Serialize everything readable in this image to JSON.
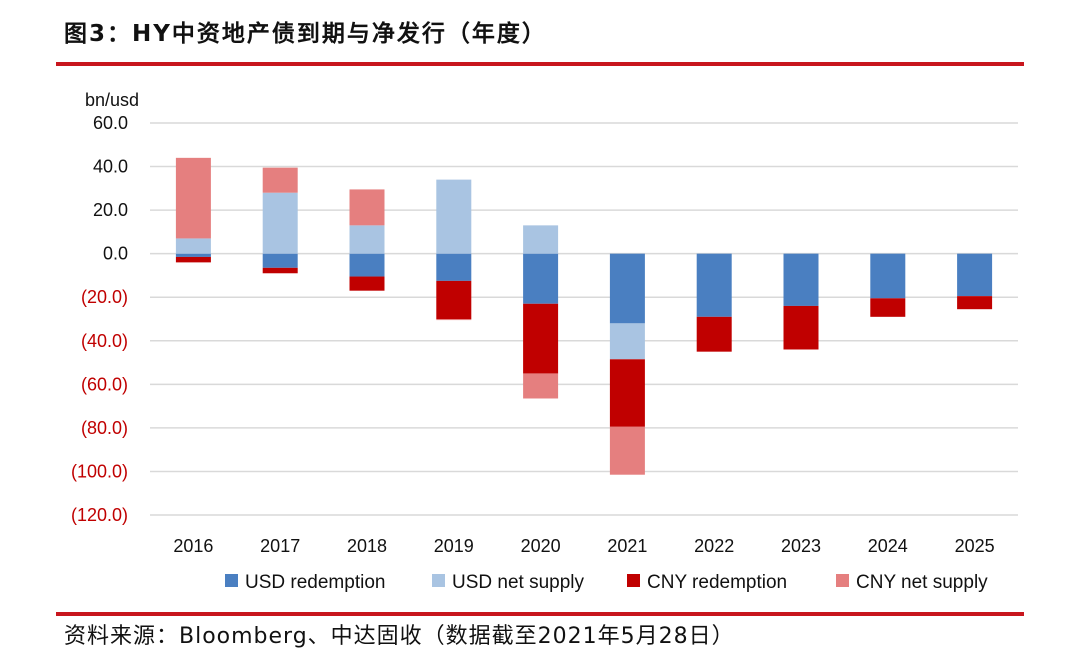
{
  "header": {
    "title": "图3：HY中资地产债到期与净发行（年度）"
  },
  "footer": {
    "source": "资料来源：Bloomberg、中达固收（数据截至2021年5月28日）"
  },
  "colors": {
    "rule": "#c8161d",
    "grid": "#d9d9d9",
    "negative_label": "#c00000",
    "positive_label": "#111111"
  },
  "chart_data": {
    "type": "bar",
    "stacked": true,
    "title": "图3：HY中资地产债到期与净发行（年度）",
    "ylabel": "bn/usd",
    "xlabel": "",
    "ylim": [
      -120,
      60
    ],
    "yticks": [
      60,
      40,
      20,
      0,
      -20,
      -40,
      -60,
      -80,
      -100,
      -120
    ],
    "ytick_labels": [
      "60.0",
      "40.0",
      "20.0",
      "0.0",
      "(20.0)",
      "(40.0)",
      "(60.0)",
      "(80.0)",
      "(100.0)",
      "(120.0)"
    ],
    "grid": true,
    "legend_position": "bottom",
    "categories": [
      "2016",
      "2017",
      "2018",
      "2019",
      "2020",
      "2021",
      "2022",
      "2023",
      "2024",
      "2025"
    ],
    "series": [
      {
        "name": "USD redemption",
        "color": "#4a7fc1",
        "values": [
          -1.5,
          -6.5,
          -10.5,
          -12.5,
          -23,
          -32,
          -29,
          -24,
          -20.5,
          -19.5
        ]
      },
      {
        "name": "USD net supply",
        "color": "#a9c4e2",
        "values": [
          7,
          28,
          13,
          34,
          13,
          -16.5,
          0,
          0,
          0,
          0
        ]
      },
      {
        "name": "CNY redemption",
        "color": "#c00000",
        "values": [
          -2.5,
          -2.5,
          -6.5,
          -17.5,
          -32,
          -31,
          -16,
          -20,
          -8.5,
          -6
        ]
      },
      {
        "name": "CNY net supply",
        "color": "#e57f7f",
        "values": [
          37,
          11.5,
          16.5,
          -0.5,
          -11.5,
          -22,
          0,
          0,
          0,
          0
        ]
      }
    ]
  }
}
